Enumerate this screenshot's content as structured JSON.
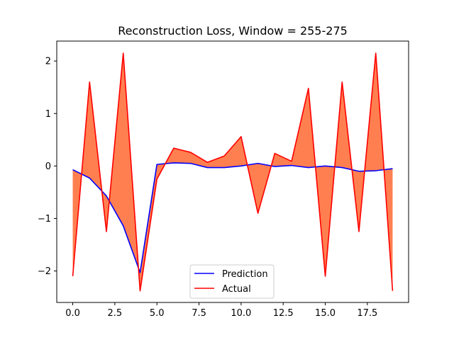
{
  "chart_data": {
    "type": "line",
    "title": "Reconstruction Loss, Window = 255-275",
    "xlabel": "",
    "ylabel": "",
    "xlim": [
      -0.95,
      19.95
    ],
    "ylim": [
      -2.6,
      2.38
    ],
    "xticks": [
      0.0,
      2.5,
      5.0,
      7.5,
      10.0,
      12.5,
      15.0,
      17.5
    ],
    "xtick_labels": [
      "0.0",
      "2.5",
      "5.0",
      "7.5",
      "10.0",
      "12.5",
      "15.0",
      "17.5"
    ],
    "yticks": [
      -2,
      -1,
      0,
      1,
      2
    ],
    "ytick_labels": [
      "−2",
      "−1",
      "0",
      "1",
      "2"
    ],
    "x": [
      0,
      1,
      2,
      3,
      4,
      5,
      6,
      7,
      8,
      9,
      10,
      11,
      12,
      13,
      14,
      15,
      16,
      17,
      18,
      19
    ],
    "series": [
      {
        "name": "Prediction",
        "color": "#0000ff",
        "values": [
          -0.07,
          -0.23,
          -0.57,
          -1.14,
          -2.03,
          0.03,
          0.06,
          0.05,
          -0.03,
          -0.03,
          0.0,
          0.05,
          -0.01,
          0.01,
          -0.03,
          0.0,
          -0.03,
          -0.1,
          -0.09,
          -0.05
        ]
      },
      {
        "name": "Actual",
        "color": "#ff0000",
        "values": [
          -2.1,
          1.6,
          -1.25,
          2.15,
          -2.38,
          -0.25,
          0.34,
          0.26,
          0.07,
          0.19,
          0.56,
          -0.9,
          0.24,
          0.09,
          1.48,
          -2.1,
          1.6,
          -1.25,
          2.15,
          -2.38
        ]
      }
    ],
    "fill_between": {
      "color": "#ff7f50",
      "between": [
        "Prediction",
        "Actual"
      ]
    },
    "legend_position": "lower center",
    "grid": false
  }
}
